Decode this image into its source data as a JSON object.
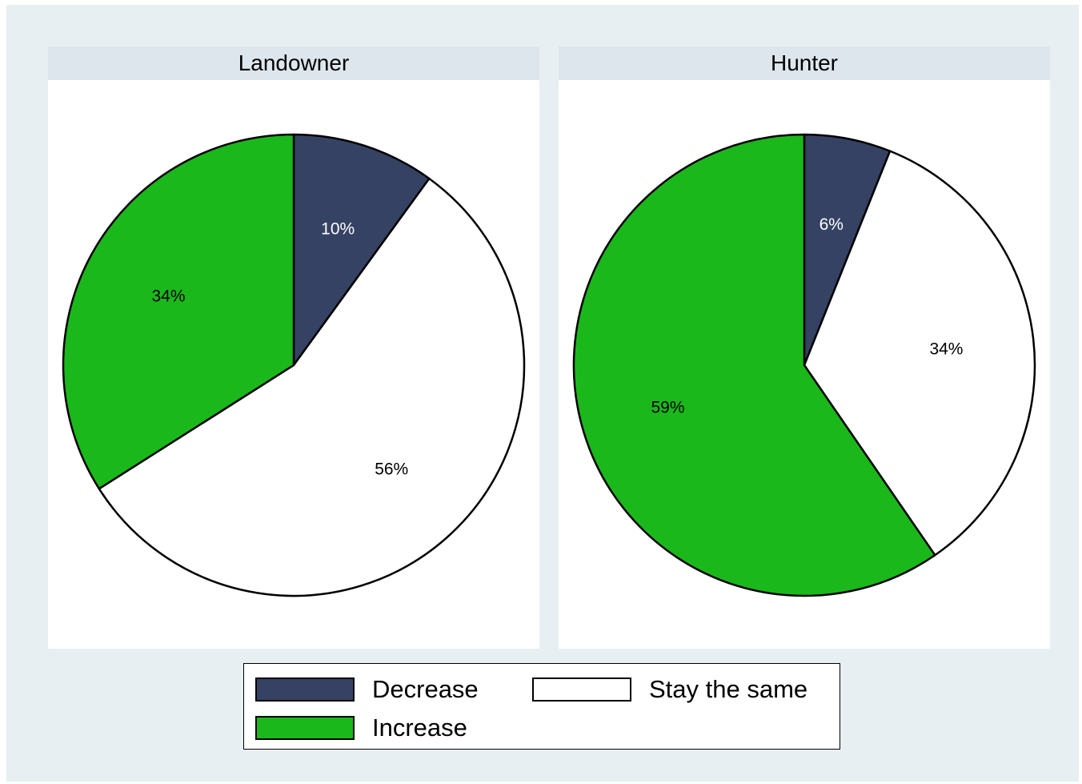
{
  "chart_data": {
    "type": "pie",
    "categories": [
      "Decrease",
      "Stay the same",
      "Increase"
    ],
    "colors": {
      "Decrease": "#354263",
      "Stay the same": "#ffffff",
      "Increase": "#1bb81b"
    },
    "panels": [
      {
        "title": "Landowner",
        "slices": [
          {
            "category": "Decrease",
            "value": 10,
            "label": "10%"
          },
          {
            "category": "Stay the same",
            "value": 56,
            "label": "56%"
          },
          {
            "category": "Increase",
            "value": 34,
            "label": "34%"
          }
        ]
      },
      {
        "title": "Hunter",
        "slices": [
          {
            "category": "Decrease",
            "value": 6,
            "label": "6%"
          },
          {
            "category": "Stay the same",
            "value": 34,
            "label": "34%"
          },
          {
            "category": "Increase",
            "value": 59,
            "label": "59%"
          }
        ]
      }
    ],
    "legend": {
      "position": "bottom",
      "items": [
        {
          "label": "Decrease",
          "color": "#354263"
        },
        {
          "label": "Stay the same",
          "color": "#ffffff"
        },
        {
          "label": "Increase",
          "color": "#1bb81b"
        }
      ]
    }
  }
}
